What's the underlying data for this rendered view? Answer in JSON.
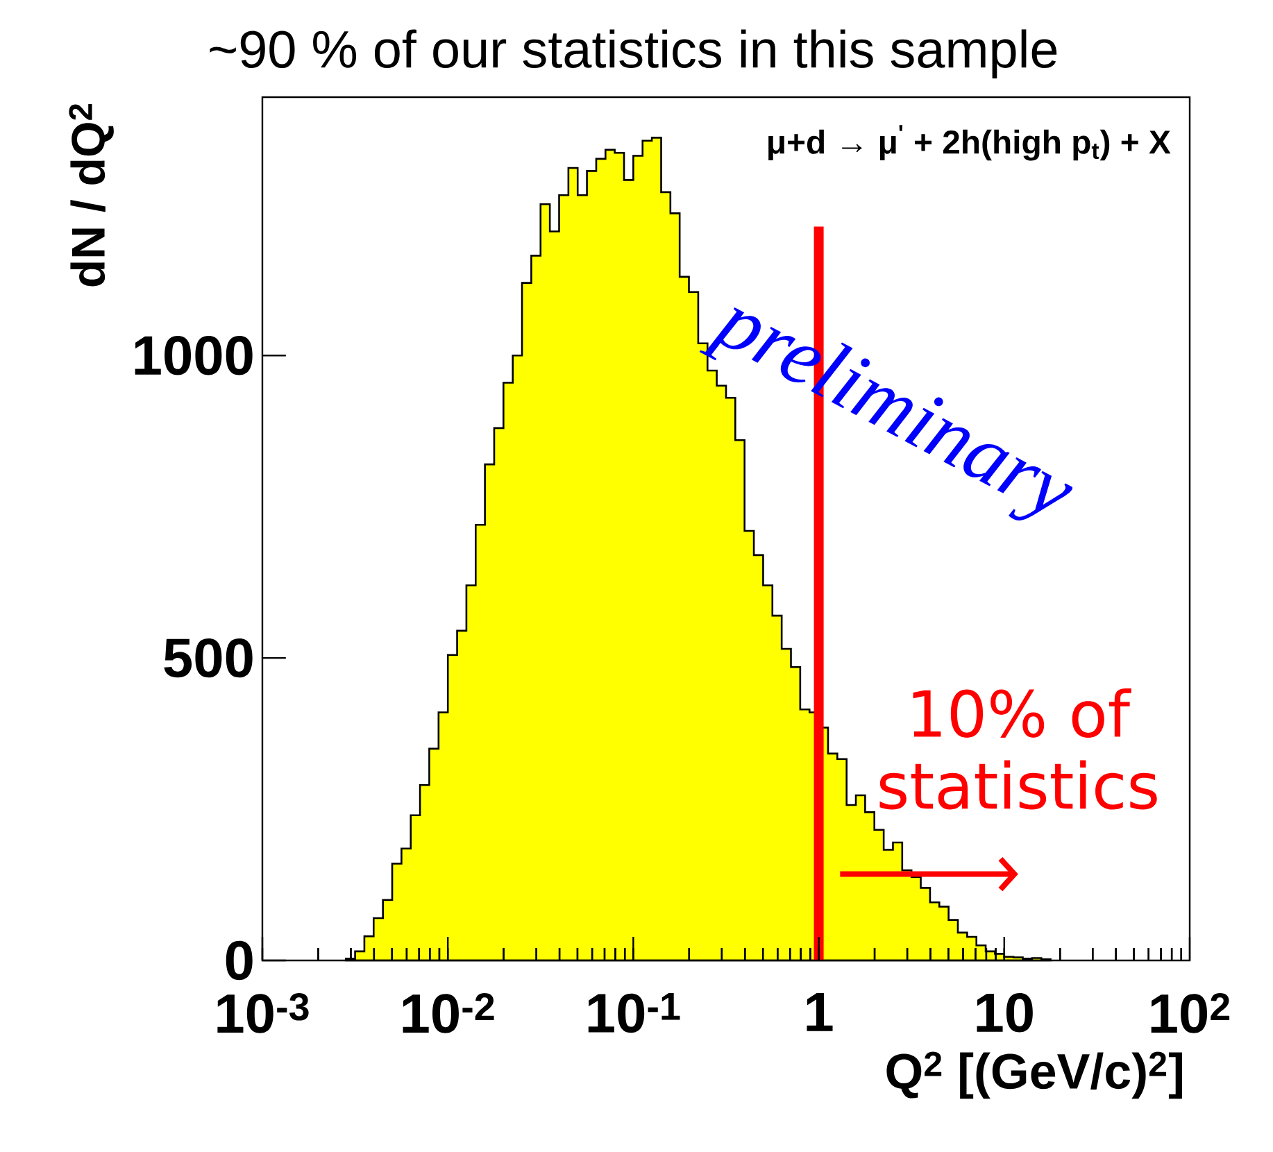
{
  "chart_data": {
    "type": "histogram",
    "title": "~90 % of our statistics in this sample",
    "xlabel": "Q$^{2}$ [(GeV/c)$^{2}$]",
    "ylabel": "dN / dQ$^{2}$",
    "annotations": [
      "μ+d → μ$^{'}$ + 2h(high p$_{t}$) + X",
      "preliminary",
      "10% of statistics"
    ],
    "log": "x",
    "color": "#ffff00",
    "xlim": [
      0.001,
      100
    ],
    "ylim": [
      0,
      1427
    ],
    "xticks": [
      {
        "value": 0.001,
        "label": "10$^{-3}$"
      },
      {
        "value": 0.01,
        "label": "10$^{-2}$"
      },
      {
        "value": 0.1,
        "label": "10$^{-1}$"
      },
      1,
      10,
      {
        "value": 100,
        "label": "10$^{2}$"
      }
    ],
    "yticks": [
      0,
      500,
      1000
    ],
    "ref_lines": [
      {
        "axis": "x",
        "value": 1,
        "color": "#ff0000"
      }
    ],
    "bins": [
      0.002818,
      0.003162,
      0.003548,
      0.003981,
      0.004467,
      0.005012,
      0.005623,
      0.00631,
      0.007079,
      0.007943,
      0.008913,
      0.01,
      0.01122,
      0.01259,
      0.01413,
      0.01585,
      0.01778,
      0.01995,
      0.02239,
      0.02512,
      0.02818,
      0.03162,
      0.03548,
      0.03981,
      0.04467,
      0.05012,
      0.05623,
      0.0631,
      0.07079,
      0.07943,
      0.08913,
      0.1,
      0.1122,
      0.1259,
      0.1413,
      0.1585,
      0.1778,
      0.1995,
      0.2239,
      0.2512,
      0.2818,
      0.3162,
      0.3548,
      0.3981,
      0.4467,
      0.5012,
      0.5623,
      0.631,
      0.7079,
      0.7943,
      0.8913,
      1,
      1.122,
      1.259,
      1.413,
      1.585,
      1.778,
      1.995,
      2.239,
      2.512,
      2.818,
      3.162,
      3.548,
      3.981,
      4.467,
      5.012,
      5.623,
      6.31,
      7.079,
      7.943,
      8.913,
      10,
      11.22,
      12.59,
      14.13,
      15.85,
      17.78
    ],
    "values": [
      3,
      15,
      40,
      70,
      100,
      160,
      185,
      240,
      290,
      350,
      410,
      505,
      545,
      620,
      720,
      820,
      880,
      955,
      1000,
      1120,
      1165,
      1250,
      1205,
      1265,
      1310,
      1265,
      1305,
      1325,
      1340,
      1335,
      1290,
      1330,
      1355,
      1360,
      1270,
      1235,
      1130,
      1105,
      1020,
      975,
      950,
      930,
      860,
      710,
      670,
      620,
      570,
      515,
      485,
      415,
      410,
      385,
      342,
      333,
      257,
      273,
      245,
      216,
      183,
      195,
      149,
      138,
      120,
      96,
      89,
      67,
      46,
      39,
      25,
      15,
      11,
      6,
      5,
      3,
      4,
      2
    ]
  }
}
